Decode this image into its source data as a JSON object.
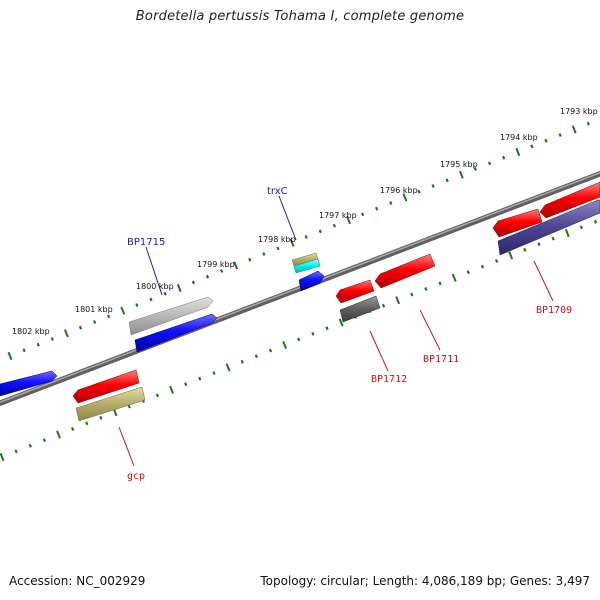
{
  "title": "Bordetella pertussis Tohama I, complete genome",
  "footer": {
    "accession": "Accession: NC_002929",
    "summary": "Topology: circular; Length: 4,086,189 bp; Genes: 3,497"
  },
  "colors": {
    "backbone": "#808080",
    "tick": "#1a7a1a",
    "forward_label": "#1c1cb4",
    "reverse_label": "#c81414"
  },
  "ticks": [
    {
      "label": "1793 kbp"
    },
    {
      "label": "1794 kbp"
    },
    {
      "label": "1795 kbp"
    },
    {
      "label": "1796 kbp"
    },
    {
      "label": "1797 kbp"
    },
    {
      "label": "1798 kbp"
    },
    {
      "label": "1799 kbp"
    },
    {
      "label": "1800 kbp"
    },
    {
      "label": "1801 kbp"
    },
    {
      "label": "1802 kbp"
    }
  ],
  "gene_labels": [
    {
      "name": "trxC",
      "strand": "forward"
    },
    {
      "name": "BP1715",
      "strand": "forward"
    },
    {
      "name": "BP1709",
      "strand": "reverse"
    },
    {
      "name": "BP1711",
      "strand": "reverse"
    },
    {
      "name": "BP1712",
      "strand": "reverse"
    },
    {
      "name": "gcp",
      "strand": "reverse"
    }
  ]
}
